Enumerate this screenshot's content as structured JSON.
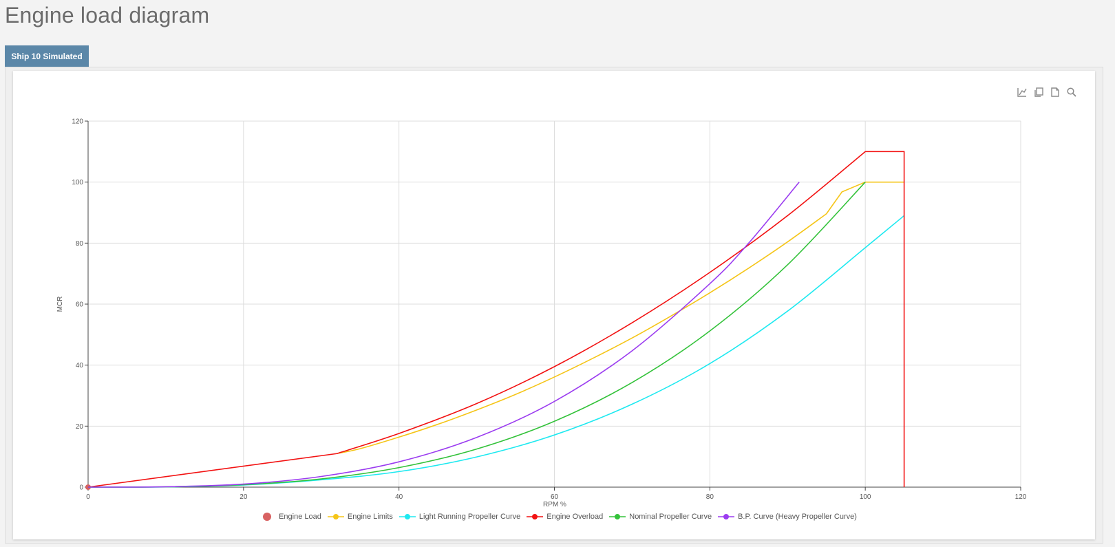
{
  "page": {
    "title": "Engine load diagram"
  },
  "tabs": [
    {
      "label": "Ship 10 Simulated"
    }
  ],
  "toolbox": [
    "chart-line-icon",
    "copy-icon",
    "document-icon",
    "zoom-icon"
  ],
  "chart_data": {
    "type": "line",
    "title": "",
    "xlabel": "RPM %",
    "ylabel": "MCR",
    "xlim": [
      0,
      120
    ],
    "ylim": [
      0,
      120
    ],
    "x_ticks": [
      0,
      20,
      40,
      60,
      80,
      100,
      120
    ],
    "y_ticks": [
      0,
      20,
      40,
      60,
      80,
      100,
      120
    ],
    "grid": true,
    "legend_position": "bottom-center",
    "series": [
      {
        "name": "Engine Load",
        "color": "#d86262",
        "marker": "dot",
        "points": [
          [
            0,
            0
          ]
        ]
      },
      {
        "name": "Engine Limits",
        "color": "#f5c518",
        "points": [
          [
            32,
            11
          ],
          [
            35,
            12.6
          ],
          [
            40,
            16.4
          ],
          [
            45,
            20.6
          ],
          [
            50,
            25.3
          ],
          [
            55,
            30.4
          ],
          [
            60,
            36.1
          ],
          [
            65,
            42.3
          ],
          [
            70,
            48.9
          ],
          [
            75,
            56.1
          ],
          [
            80,
            63.7
          ],
          [
            85,
            71.8
          ],
          [
            90,
            80.4
          ],
          [
            95,
            89.6
          ],
          [
            97,
            96.8
          ],
          [
            100,
            100
          ],
          [
            105,
            100
          ]
        ]
      },
      {
        "name": "Light Running Propeller Curve",
        "color": "#1ee9f0",
        "points": [
          [
            0,
            0
          ],
          [
            10,
            0.08
          ],
          [
            20,
            0.7
          ],
          [
            30,
            2.4
          ],
          [
            40,
            5.1
          ],
          [
            50,
            9.9
          ],
          [
            60,
            17.1
          ],
          [
            70,
            27.2
          ],
          [
            80,
            40.5
          ],
          [
            90,
            57.7
          ],
          [
            100,
            78.5
          ],
          [
            105,
            89
          ]
        ]
      },
      {
        "name": "Engine Overload",
        "color": "#f21212",
        "points": [
          [
            0,
            0
          ],
          [
            32,
            11
          ],
          [
            40,
            17.6
          ],
          [
            50,
            27.4
          ],
          [
            60,
            39.5
          ],
          [
            70,
            53.9
          ],
          [
            80,
            70.4
          ],
          [
            90,
            89
          ],
          [
            100,
            110
          ],
          [
            105,
            110
          ],
          [
            105,
            0
          ]
        ]
      },
      {
        "name": "Nominal Propeller Curve",
        "color": "#33c23a",
        "points": [
          [
            0,
            0
          ],
          [
            10,
            0.1
          ],
          [
            20,
            0.8
          ],
          [
            30,
            2.7
          ],
          [
            40,
            6.4
          ],
          [
            50,
            12.5
          ],
          [
            60,
            21.6
          ],
          [
            70,
            34.3
          ],
          [
            80,
            51.2
          ],
          [
            90,
            72.9
          ],
          [
            100,
            100
          ]
        ]
      },
      {
        "name": "B.P. Curve (Heavy Propeller Curve)",
        "color": "#9b3cf0",
        "points": [
          [
            0,
            0
          ],
          [
            10,
            0.13
          ],
          [
            20,
            1.0
          ],
          [
            30,
            3.5
          ],
          [
            40,
            8.3
          ],
          [
            50,
            16.3
          ],
          [
            60,
            28.1
          ],
          [
            70,
            44.7
          ],
          [
            80,
            66.7
          ],
          [
            85,
            80
          ],
          [
            91.5,
            100
          ]
        ]
      }
    ]
  }
}
